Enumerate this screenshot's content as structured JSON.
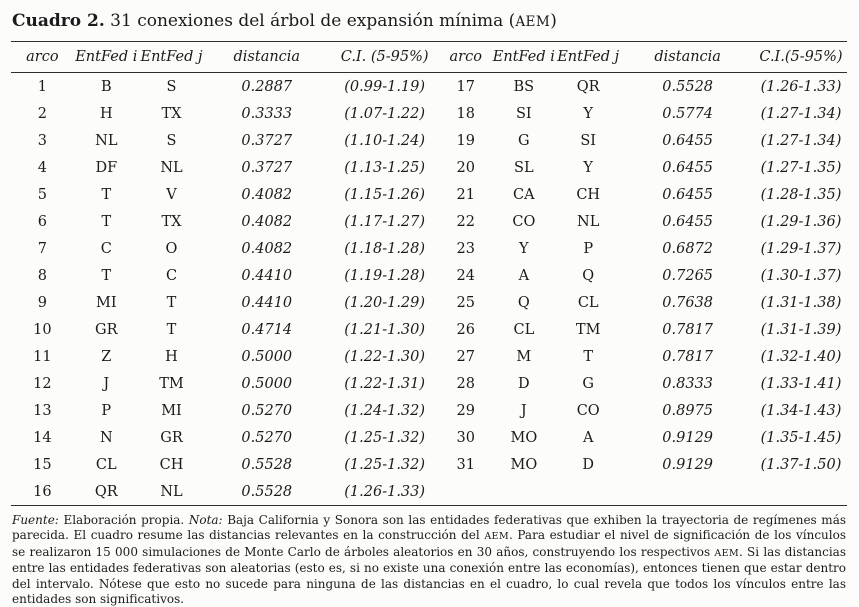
{
  "page": {
    "background_color": "#fcfcfa",
    "text_color": "#1b1b1b",
    "rule_color": "#2f2f2f"
  },
  "title": {
    "bold": "Cuadro 2.",
    "pre": " 31 conexiones del árbol de expansión mínima (",
    "acronym": "AEM",
    "post": ")"
  },
  "table": {
    "headers_left": [
      "arco",
      "EntFed i",
      "EntFed j",
      "distancia",
      "C.I. (5-95%)"
    ],
    "headers_right": [
      "arco",
      "EntFed i",
      "EntFed j",
      "distancia",
      "C.I.(5-95%)"
    ],
    "rows": [
      {
        "arco": "1",
        "i": "B",
        "j": "S",
        "dist": "0.2887",
        "ci": "(0.99-1.19)"
      },
      {
        "arco": "2",
        "i": "H",
        "j": "TX",
        "dist": "0.3333",
        "ci": "(1.07-1.22)"
      },
      {
        "arco": "3",
        "i": "NL",
        "j": "S",
        "dist": "0.3727",
        "ci": "(1.10-1.24)"
      },
      {
        "arco": "4",
        "i": "DF",
        "j": "NL",
        "dist": "0.3727",
        "ci": "(1.13-1.25)"
      },
      {
        "arco": "5",
        "i": "T",
        "j": "V",
        "dist": "0.4082",
        "ci": "(1.15-1.26)"
      },
      {
        "arco": "6",
        "i": "T",
        "j": "TX",
        "dist": "0.4082",
        "ci": "(1.17-1.27)"
      },
      {
        "arco": "7",
        "i": "C",
        "j": "O",
        "dist": "0.4082",
        "ci": "(1.18-1.28)"
      },
      {
        "arco": "8",
        "i": "T",
        "j": "C",
        "dist": "0.4410",
        "ci": "(1.19-1.28)"
      },
      {
        "arco": "9",
        "i": "MI",
        "j": "T",
        "dist": "0.4410",
        "ci": "(1.20-1.29)"
      },
      {
        "arco": "10",
        "i": "GR",
        "j": "T",
        "dist": "0.4714",
        "ci": "(1.21-1.30)"
      },
      {
        "arco": "11",
        "i": "Z",
        "j": "H",
        "dist": "0.5000",
        "ci": "(1.22-1.30)"
      },
      {
        "arco": "12",
        "i": "J",
        "j": "TM",
        "dist": "0.5000",
        "ci": "(1.22-1.31)"
      },
      {
        "arco": "13",
        "i": "P",
        "j": "MI",
        "dist": "0.5270",
        "ci": "(1.24-1.32)"
      },
      {
        "arco": "14",
        "i": "N",
        "j": "GR",
        "dist": "0.5270",
        "ci": "(1.25-1.32)"
      },
      {
        "arco": "15",
        "i": "CL",
        "j": "CH",
        "dist": "0.5528",
        "ci": "(1.25-1.32)"
      },
      {
        "arco": "16",
        "i": "QR",
        "j": "NL",
        "dist": "0.5528",
        "ci": "(1.26-1.33)"
      },
      {
        "arco": "17",
        "i": "BS",
        "j": "QR",
        "dist": "0.5528",
        "ci": "(1.26-1.33)"
      },
      {
        "arco": "18",
        "i": "SI",
        "j": "Y",
        "dist": "0.5774",
        "ci": "(1.27-1.34)"
      },
      {
        "arco": "19",
        "i": "G",
        "j": "SI",
        "dist": "0.6455",
        "ci": "(1.27-1.34)"
      },
      {
        "arco": "20",
        "i": "SL",
        "j": "Y",
        "dist": "0.6455",
        "ci": "(1.27-1.35)"
      },
      {
        "arco": "21",
        "i": "CA",
        "j": "CH",
        "dist": "0.6455",
        "ci": "(1.28-1.35)"
      },
      {
        "arco": "22",
        "i": "CO",
        "j": "NL",
        "dist": "0.6455",
        "ci": "(1.29-1.36)"
      },
      {
        "arco": "23",
        "i": "Y",
        "j": "P",
        "dist": "0.6872",
        "ci": "(1.29-1.37)"
      },
      {
        "arco": "24",
        "i": "A",
        "j": "Q",
        "dist": "0.7265",
        "ci": "(1.30-1.37)"
      },
      {
        "arco": "25",
        "i": "Q",
        "j": "CL",
        "dist": "0.7638",
        "ci": "(1.31-1.38)"
      },
      {
        "arco": "26",
        "i": "CL",
        "j": "TM",
        "dist": "0.7817",
        "ci": "(1.31-1.39)"
      },
      {
        "arco": "27",
        "i": "M",
        "j": "T",
        "dist": "0.7817",
        "ci": "(1.32-1.40)"
      },
      {
        "arco": "28",
        "i": "D",
        "j": "G",
        "dist": "0.8333",
        "ci": "(1.33-1.41)"
      },
      {
        "arco": "29",
        "i": "J",
        "j": "CO",
        "dist": "0.8975",
        "ci": "(1.34-1.43)"
      },
      {
        "arco": "30",
        "i": "MO",
        "j": "A",
        "dist": "0.9129",
        "ci": "(1.35-1.45)"
      },
      {
        "arco": "31",
        "i": "MO",
        "j": "D",
        "dist": "0.9129",
        "ci": "(1.37-1.50)"
      }
    ]
  },
  "footnote": {
    "fuente_label": "Fuente:",
    "s1": " Elaboración propia. ",
    "nota_label": "Nota:",
    "s2": " Baja California y Sonora son las entidades federativas que exhiben la trayectoria de regímenes más parecida. El cuadro resume las distancias relevantes en la construcción del ",
    "aem1": "AEM",
    "s3": ". Para estudiar el nivel de significación de los vínculos se realizaron 15 000 simulaciones de Monte Carlo de árboles aleatorios en 30 años, construyendo los respectivos ",
    "aem2": "AEM",
    "s4": ". Si las distancias entre las entidades federativas son aleatorias (esto es, si no existe una conexión entre las economías), entonces tienen que estar dentro del intervalo. Nótese que esto no sucede para ninguna de las distancias en el cuadro, lo cual revela que todos los vínculos entre las entidades son significativos."
  }
}
